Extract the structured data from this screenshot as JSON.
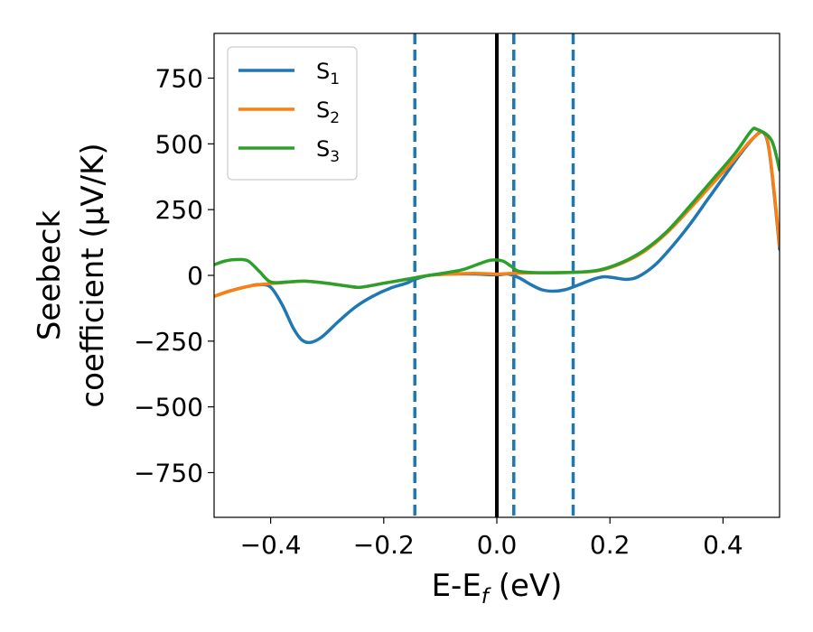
{
  "chart_data": {
    "type": "line",
    "xlabel": {
      "main": "E-E",
      "sub": "f",
      "unit": " (eV)"
    },
    "ylabel": {
      "line1": "Seebeck",
      "line2": "coefficient  (μV/K)"
    },
    "xlim": [
      -0.5,
      0.5
    ],
    "ylim": [
      -920,
      920
    ],
    "xticks": [
      -0.4,
      -0.2,
      0.0,
      0.2,
      0.4
    ],
    "xtick_labels": [
      "−0.4",
      "−0.2",
      "0.0",
      "0.2",
      "0.4"
    ],
    "yticks": [
      750,
      500,
      250,
      0,
      -250,
      -500,
      -750
    ],
    "ytick_labels": [
      "750",
      "500",
      "250",
      "0",
      "−250",
      "−500",
      "−750"
    ],
    "grid": false,
    "legend_position": "top-left",
    "vertical_lines": [
      {
        "x": 0.0,
        "style": "solid",
        "color": "#000000"
      },
      {
        "x": -0.145,
        "style": "dashed",
        "color": "#1f77b4"
      },
      {
        "x": 0.03,
        "style": "dashed",
        "color": "#1f77b4"
      },
      {
        "x": 0.135,
        "style": "dashed",
        "color": "#1f77b4"
      }
    ],
    "series": [
      {
        "name": "S",
        "sub": "1",
        "color": "#1f77b4",
        "points": [
          [
            -0.5,
            -80
          ],
          [
            -0.47,
            -58
          ],
          [
            -0.44,
            -42
          ],
          [
            -0.42,
            -35
          ],
          [
            -0.4,
            -45
          ],
          [
            -0.38,
            -110
          ],
          [
            -0.36,
            -200
          ],
          [
            -0.345,
            -245
          ],
          [
            -0.33,
            -255
          ],
          [
            -0.31,
            -235
          ],
          [
            -0.28,
            -175
          ],
          [
            -0.25,
            -120
          ],
          [
            -0.22,
            -80
          ],
          [
            -0.19,
            -50
          ],
          [
            -0.16,
            -30
          ],
          [
            -0.145,
            -15
          ],
          [
            -0.12,
            0
          ],
          [
            -0.08,
            5
          ],
          [
            -0.04,
            5
          ],
          [
            0.0,
            2
          ],
          [
            0.02,
            5
          ],
          [
            0.04,
            -10
          ],
          [
            0.06,
            -35
          ],
          [
            0.08,
            -55
          ],
          [
            0.1,
            -60
          ],
          [
            0.12,
            -55
          ],
          [
            0.14,
            -40
          ],
          [
            0.17,
            -15
          ],
          [
            0.19,
            -5
          ],
          [
            0.21,
            -10
          ],
          [
            0.23,
            -15
          ],
          [
            0.25,
            -5
          ],
          [
            0.28,
            40
          ],
          [
            0.31,
            110
          ],
          [
            0.34,
            190
          ],
          [
            0.37,
            280
          ],
          [
            0.4,
            370
          ],
          [
            0.43,
            460
          ],
          [
            0.455,
            525
          ],
          [
            0.47,
            545
          ],
          [
            0.48,
            495
          ],
          [
            0.49,
            320
          ],
          [
            0.5,
            100
          ]
        ]
      },
      {
        "name": "S",
        "sub": "2",
        "color": "#ff7f0e",
        "points": [
          [
            -0.5,
            -80
          ],
          [
            -0.47,
            -58
          ],
          [
            -0.44,
            -42
          ],
          [
            -0.42,
            -35
          ],
          [
            -0.38,
            -28
          ],
          [
            -0.34,
            -22
          ],
          [
            -0.3,
            -30
          ],
          [
            -0.26,
            -42
          ],
          [
            -0.24,
            -45
          ],
          [
            -0.2,
            -30
          ],
          [
            -0.16,
            -15
          ],
          [
            -0.12,
            0
          ],
          [
            -0.08,
            5
          ],
          [
            -0.04,
            8
          ],
          [
            0.0,
            5
          ],
          [
            0.03,
            8
          ],
          [
            0.08,
            10
          ],
          [
            0.14,
            12
          ],
          [
            0.18,
            18
          ],
          [
            0.22,
            45
          ],
          [
            0.26,
            90
          ],
          [
            0.3,
            160
          ],
          [
            0.34,
            250
          ],
          [
            0.38,
            345
          ],
          [
            0.42,
            440
          ],
          [
            0.45,
            515
          ],
          [
            0.47,
            545
          ],
          [
            0.48,
            500
          ],
          [
            0.49,
            330
          ],
          [
            0.5,
            110
          ]
        ]
      },
      {
        "name": "S",
        "sub": "3",
        "color": "#2ca02c",
        "points": [
          [
            -0.5,
            40
          ],
          [
            -0.48,
            55
          ],
          [
            -0.46,
            60
          ],
          [
            -0.44,
            55
          ],
          [
            -0.42,
            15
          ],
          [
            -0.4,
            -25
          ],
          [
            -0.37,
            -25
          ],
          [
            -0.34,
            -22
          ],
          [
            -0.3,
            -30
          ],
          [
            -0.26,
            -42
          ],
          [
            -0.24,
            -45
          ],
          [
            -0.2,
            -30
          ],
          [
            -0.16,
            -15
          ],
          [
            -0.12,
            0
          ],
          [
            -0.09,
            10
          ],
          [
            -0.06,
            22
          ],
          [
            -0.03,
            45
          ],
          [
            -0.01,
            58
          ],
          [
            0.01,
            55
          ],
          [
            0.025,
            35
          ],
          [
            0.04,
            15
          ],
          [
            0.08,
            10
          ],
          [
            0.14,
            12
          ],
          [
            0.18,
            20
          ],
          [
            0.22,
            48
          ],
          [
            0.26,
            95
          ],
          [
            0.3,
            165
          ],
          [
            0.34,
            260
          ],
          [
            0.38,
            360
          ],
          [
            0.42,
            460
          ],
          [
            0.45,
            550
          ],
          [
            0.46,
            555
          ],
          [
            0.48,
            530
          ],
          [
            0.49,
            490
          ],
          [
            0.5,
            400
          ]
        ]
      }
    ]
  }
}
